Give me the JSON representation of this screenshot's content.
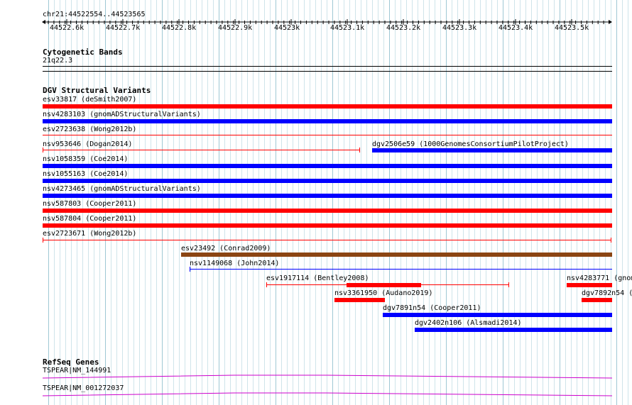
{
  "locus": "chr21:44522554..44523565",
  "ruler": {
    "ticks": [
      "44522.6k",
      "44522.7k",
      "44522.8k",
      "44522.9k",
      "44523k",
      "44523.1k",
      "44523.2k",
      "44523.3k",
      "44523.4k",
      "44523.5k"
    ]
  },
  "cytoband": {
    "title": "Cytogenetic Bands",
    "band": "21q22.3"
  },
  "dgv": {
    "title": "DGV Structural Variants",
    "features": [
      {
        "label": "esv33817 (deSmith2007)",
        "color": "#ff0000",
        "style": "thick"
      },
      {
        "label": "nsv4283103 (gnomADStructuralVariants)",
        "color": "#0000ff",
        "style": "thick"
      },
      {
        "label": "esv2723638 (Wong2012b)",
        "color": "#ff0000",
        "style": "thin"
      },
      {
        "label": "nsv953646 (Dogan2014)",
        "color": "#ff0000",
        "style": "thin"
      },
      {
        "label": "dgv2506e59 (1000GenomesConsortiumPilotProject)",
        "color": "#0000ff",
        "style": "thick"
      },
      {
        "label": "nsv1058359 (Coe2014)",
        "color": "#0000ff",
        "style": "thick"
      },
      {
        "label": "nsv1055163 (Coe2014)",
        "color": "#0000ff",
        "style": "thick"
      },
      {
        "label": "nsv4273465 (gnomADStructuralVariants)",
        "color": "#0000ff",
        "style": "thick"
      },
      {
        "label": "nsv587803 (Cooper2011)",
        "color": "#ff0000",
        "style": "thick"
      },
      {
        "label": "nsv587804 (Cooper2011)",
        "color": "#ff0000",
        "style": "thick"
      },
      {
        "label": "esv2723671 (Wong2012b)",
        "color": "#ff0000",
        "style": "thin"
      },
      {
        "label": "esv23492 (Conrad2009)",
        "color": "#8b4513",
        "style": "thick"
      },
      {
        "label": "nsv1149068 (John2014)",
        "color": "#0000ff",
        "style": "thin"
      },
      {
        "label": "esv1917114 (Bentley2008)",
        "color": "#ff0000",
        "style": "thin"
      },
      {
        "label": "nsv4283771 (gnom",
        "color": "#ff0000",
        "style": "thick"
      },
      {
        "label": "nsv3361950 (Audano2019)",
        "color": "#ff0000",
        "style": "thick"
      },
      {
        "label": "dgv7892n54 (",
        "color": "#ff0000",
        "style": "thick"
      },
      {
        "label": "dgv7891n54 (Cooper2011)",
        "color": "#0000ff",
        "style": "thick"
      },
      {
        "label": "dgv2402n106 (Alsmadi2014)",
        "color": "#0000ff",
        "style": "thick"
      }
    ]
  },
  "refseq": {
    "title": "RefSeq Genes",
    "transcripts": [
      {
        "label": "TSPEAR|NM_144991",
        "color": "#cc00cc"
      },
      {
        "label": "TSPEAR|NM_001272037",
        "color": "#cc00cc"
      }
    ]
  }
}
